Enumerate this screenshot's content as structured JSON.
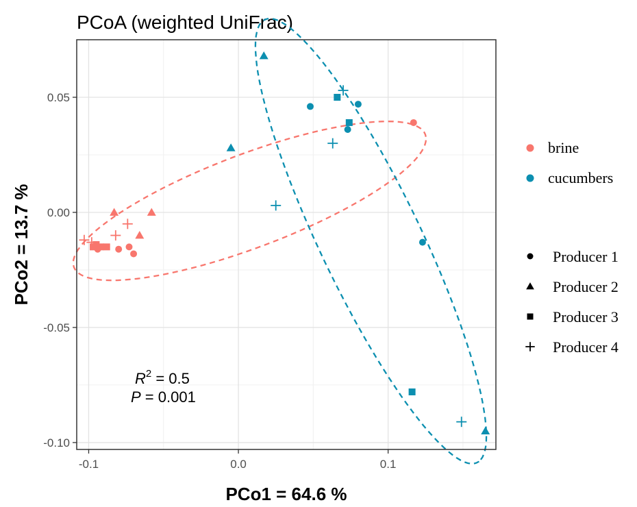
{
  "chart_data": {
    "type": "scatter",
    "title": "PCoA (weighted UniFrac)",
    "xlabel": "PCo1 = 64.6 %",
    "ylabel": "PCo2 = 13.7 %",
    "xlim": [
      -0.108,
      0.172
    ],
    "ylim": [
      -0.103,
      0.075
    ],
    "x_ticks": [
      -0.1,
      0.0,
      0.1
    ],
    "x_tick_labels": [
      "-0.1",
      "0.0",
      "0.1"
    ],
    "y_ticks": [
      -0.1,
      -0.05,
      0.0,
      0.05
    ],
    "y_tick_labels": [
      "-0.10",
      "-0.05",
      "0.00",
      "0.05"
    ],
    "grid": true,
    "colors": {
      "brine": "#F8766D",
      "cucumbers": "#0C8FB0"
    },
    "legend_color": {
      "position": "right",
      "entries": [
        "brine",
        "cucumbers"
      ]
    },
    "legend_shape": {
      "position": "right",
      "entries": [
        "Producer 1",
        "Producer 2",
        "Producer 3",
        "Producer 4"
      ]
    },
    "annotation": {
      "r2_label": "R",
      "r2_sup": "2",
      "r2_value": " = 0.5",
      "p_label": "P",
      "p_value": " = 0.001"
    },
    "series": [
      {
        "group": "brine",
        "points": [
          {
            "x": -0.073,
            "y": -0.015,
            "shape": "Producer 1"
          },
          {
            "x": -0.07,
            "y": -0.018,
            "shape": "Producer 1"
          },
          {
            "x": -0.08,
            "y": -0.016,
            "shape": "Producer 1"
          },
          {
            "x": -0.094,
            "y": -0.016,
            "shape": "Producer 1"
          },
          {
            "x": 0.117,
            "y": 0.039,
            "shape": "Producer 1"
          },
          {
            "x": -0.083,
            "y": 0.0,
            "shape": "Producer 2"
          },
          {
            "x": -0.058,
            "y": 0.0,
            "shape": "Producer 2"
          },
          {
            "x": -0.066,
            "y": -0.01,
            "shape": "Producer 2"
          },
          {
            "x": -0.097,
            "y": -0.015,
            "shape": "Producer 3"
          },
          {
            "x": -0.092,
            "y": -0.015,
            "shape": "Producer 3"
          },
          {
            "x": -0.088,
            "y": -0.015,
            "shape": "Producer 3"
          },
          {
            "x": -0.095,
            "y": -0.014,
            "shape": "Producer 3"
          },
          {
            "x": -0.074,
            "y": -0.005,
            "shape": "Producer 4"
          },
          {
            "x": -0.082,
            "y": -0.01,
            "shape": "Producer 4"
          },
          {
            "x": -0.098,
            "y": -0.013,
            "shape": "Producer 4"
          },
          {
            "x": -0.103,
            "y": -0.012,
            "shape": "Producer 4"
          }
        ]
      },
      {
        "group": "cucumbers",
        "points": [
          {
            "x": 0.048,
            "y": 0.046,
            "shape": "Producer 1"
          },
          {
            "x": 0.08,
            "y": 0.047,
            "shape": "Producer 1"
          },
          {
            "x": 0.073,
            "y": 0.036,
            "shape": "Producer 1"
          },
          {
            "x": 0.123,
            "y": -0.013,
            "shape": "Producer 1"
          },
          {
            "x": 0.017,
            "y": 0.068,
            "shape": "Producer 2"
          },
          {
            "x": -0.005,
            "y": 0.028,
            "shape": "Producer 2"
          },
          {
            "x": 0.165,
            "y": -0.095,
            "shape": "Producer 2"
          },
          {
            "x": 0.066,
            "y": 0.05,
            "shape": "Producer 3"
          },
          {
            "x": 0.074,
            "y": 0.039,
            "shape": "Producer 3"
          },
          {
            "x": 0.116,
            "y": -0.078,
            "shape": "Producer 3"
          },
          {
            "x": 0.07,
            "y": 0.053,
            "shape": "Producer 4"
          },
          {
            "x": 0.063,
            "y": 0.03,
            "shape": "Producer 4"
          },
          {
            "x": 0.025,
            "y": 0.003,
            "shape": "Producer 4"
          },
          {
            "x": 0.149,
            "y": -0.091,
            "shape": "Producer 4"
          }
        ]
      }
    ],
    "ellipses": [
      {
        "group": "brine",
        "center": [
          0.0075,
          0.005
        ],
        "half_axis_a": 0.121,
        "half_axis_b": 0.021,
        "angle_deg": 13.3
      },
      {
        "group": "cucumbers",
        "center": [
          0.0885,
          -0.0125
        ],
        "half_axis_a": 0.12,
        "half_axis_b": 0.03,
        "angle_deg": -52.3
      }
    ]
  }
}
